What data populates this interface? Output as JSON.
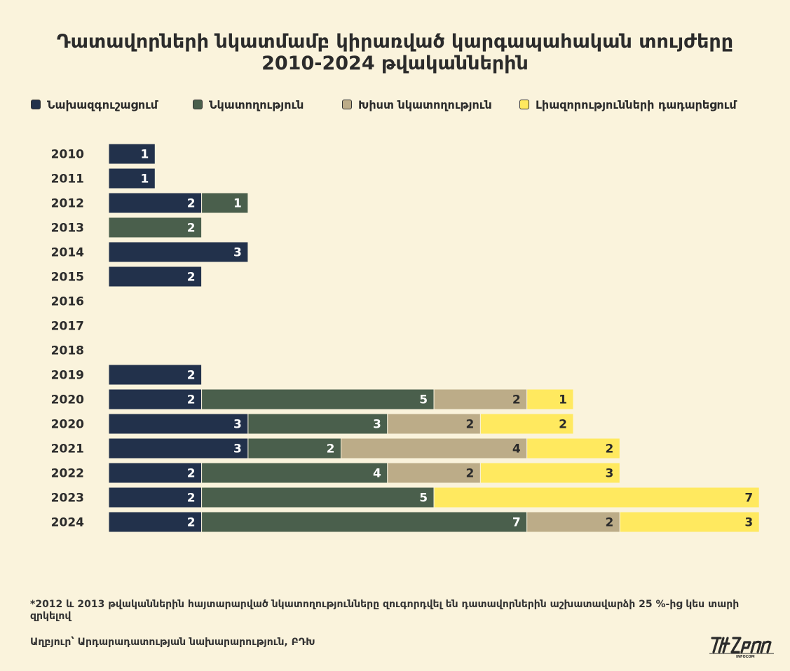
{
  "title_line1": "Դատավորների նկատմամբ կիրառված կարգապահական տույժերը",
  "title_line2": "2010-2024 թվականներին",
  "legend": [
    {
      "label": "Նախազգուշացում",
      "color": "#22314b"
    },
    {
      "label": "Նկատողություն",
      "color": "#4a5f4c"
    },
    {
      "label": "Խիստ նկատողություն",
      "color": "#bcac88"
    },
    {
      "label": "Լիազորությունների դադարեցում",
      "color": "#ffe95f"
    }
  ],
  "chart_data": {
    "type": "bar",
    "orientation": "horizontal",
    "stacked": true,
    "categories": [
      "2010",
      "2011",
      "2012",
      "2013",
      "2014",
      "2015",
      "2016",
      "2017",
      "2018",
      "2019",
      "2020",
      "2020",
      "2021",
      "2022",
      "2023",
      "2024"
    ],
    "series": [
      {
        "name": "Նախազգուշացում",
        "color": "#22314b",
        "values": [
          1,
          1,
          2,
          0,
          3,
          2,
          0,
          0,
          0,
          2,
          2,
          3,
          3,
          2,
          2,
          2
        ]
      },
      {
        "name": "Նկատողություն",
        "color": "#4a5f4c",
        "values": [
          0,
          0,
          1,
          2,
          0,
          0,
          0,
          0,
          0,
          0,
          5,
          3,
          2,
          4,
          5,
          7
        ]
      },
      {
        "name": "Խիստ նկատողություն",
        "color": "#bcac88",
        "values": [
          0,
          0,
          0,
          0,
          0,
          0,
          0,
          0,
          0,
          0,
          2,
          2,
          4,
          2,
          0,
          2
        ]
      },
      {
        "name": "Լիազորությունների դադարեցում",
        "color": "#ffe95f",
        "values": [
          0,
          0,
          0,
          0,
          0,
          0,
          0,
          0,
          0,
          0,
          1,
          2,
          2,
          3,
          7,
          3
        ]
      }
    ],
    "data_labels": true,
    "grid": false,
    "legend_position": "top"
  },
  "footnote": "*2012 և 2013 թվականներին հայտարարված նկատողությունները զուգորդվել են դատավորներին աշխատավարձի 25 %-ից կես տարի զրկելով",
  "source": "Աղբյուր՝ Արդարադատության նախարարություն, ԲԴԽ",
  "logo_text": "INFOCOM"
}
